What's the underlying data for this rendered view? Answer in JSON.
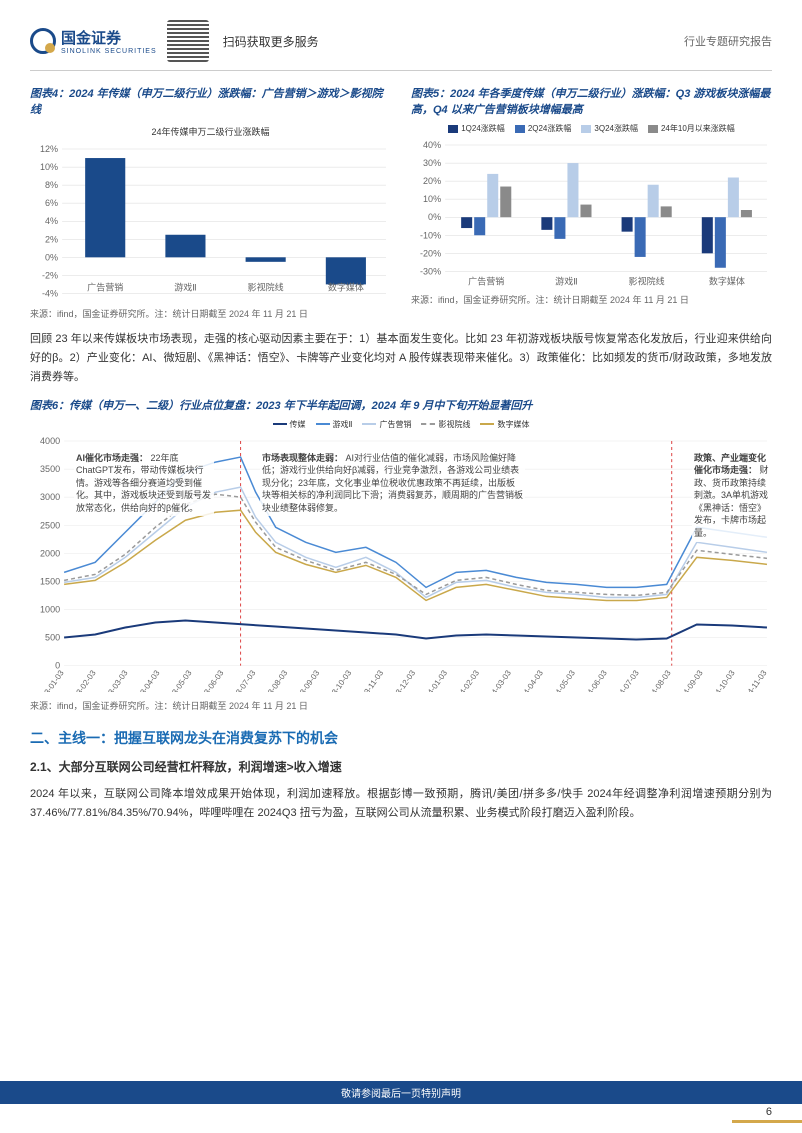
{
  "header": {
    "company_cn": "国金证券",
    "company_en": "SINOLINK SECURITIES",
    "qr_text": "扫码获取更多服务",
    "doc_type": "行业专题研究报告"
  },
  "chart4": {
    "title": "图表4：2024 年传媒（申万二级行业）涨跌幅：广告营销＞游戏＞影视院线",
    "subtitle": "24年传媒申万二级行业涨跌幅",
    "type": "bar",
    "categories": [
      "广告营销",
      "游戏Ⅱ",
      "影视院线",
      "数字媒体"
    ],
    "values": [
      11,
      2.5,
      -0.5,
      -3
    ],
    "bar_color": "#1a4a8a",
    "ylim": [
      -4,
      12
    ],
    "ytick_step": 2,
    "grid_color": "#d9d9d9",
    "source": "来源：ifind，国金证券研究所。注：统计日期截至 2024 年 11 月 21 日"
  },
  "chart5": {
    "title": "图表5：2024 年各季度传媒（申万二级行业）涨跌幅：Q3 游戏板块涨幅最高，Q4 以来广告营销板块增幅最高",
    "type": "grouped-bar",
    "categories": [
      "广告营销",
      "游戏Ⅱ",
      "影视院线",
      "数字媒体"
    ],
    "series": [
      {
        "name": "1Q24涨跌幅",
        "color": "#1a3a7a",
        "values": [
          -6,
          -7,
          -8,
          -20
        ]
      },
      {
        "name": "2Q24涨跌幅",
        "color": "#3a6ab5",
        "values": [
          -10,
          -12,
          -22,
          -28
        ]
      },
      {
        "name": "3Q24涨跌幅",
        "color": "#b8cde8",
        "values": [
          24,
          30,
          18,
          22
        ]
      },
      {
        "name": "24年10月以来涨跌幅",
        "color": "#8a8a8a",
        "values": [
          17,
          7,
          6,
          4
        ]
      }
    ],
    "ylim": [
      -30,
      40
    ],
    "ytick_step": 10,
    "grid_color": "#d9d9d9",
    "source": "来源：ifind，国金证券研究所。注：统计日期截至 2024 年 11 月 21 日"
  },
  "para1": "回顾 23 年以来传媒板块市场表现，走强的核心驱动因素主要在于：1）基本面发生变化。比如 23 年初游戏板块版号恢复常态化发放后，行业迎来供给向好的β。2）产业变化：AI、微短剧、《黑神话：悟空》、卡牌等产业变化均对 A 股传媒表现带来催化。3）政策催化：比如频发的货币/财政政策，多地发放消费券等。",
  "chart6": {
    "title": "图表6：传媒（申万一、二级）行业点位复盘：2023 年下半年起回调，2024 年 9 月中下旬开始显著回升",
    "type": "line",
    "series_legend": [
      {
        "name": "传媒",
        "color": "#1a3a7a",
        "style": "solid"
      },
      {
        "name": "游戏Ⅱ",
        "color": "#4a8ad4",
        "style": "solid"
      },
      {
        "name": "广告营销",
        "color": "#b8cde8",
        "style": "solid"
      },
      {
        "name": "影视院线",
        "color": "#9a9a9a",
        "style": "dashed"
      },
      {
        "name": "数字媒体",
        "color": "#c9a84b",
        "style": "solid"
      }
    ],
    "ylim": [
      0,
      4000
    ],
    "ytick_step": 500,
    "x_labels": [
      "2023-01-03",
      "2023-02-03",
      "2023-03-03",
      "2023-04-03",
      "2023-05-03",
      "2023-06-03",
      "2023-07-03",
      "2023-08-03",
      "2023-09-03",
      "2023-10-03",
      "2023-11-03",
      "2023-12-03",
      "2024-01-03",
      "2024-02-03",
      "2024-03-03",
      "2024-04-03",
      "2024-05-03",
      "2024-06-03",
      "2024-07-03",
      "2024-08-03",
      "2024-09-03",
      "2024-10-03",
      "2024-11-03"
    ],
    "annotations": {
      "a1_head": "AI催化市场走强：",
      "a1_body": "22年底ChatGPT发布，带动传媒板块行情。游戏等各细分赛道均受到催化。其中，游戏板块还受到版号发放常态化，供给向好的β催化。",
      "a2_head": "市场表现整体走弱：",
      "a2_body": "AI对行业估值的催化减弱，市场风险偏好降低；游戏行业供给向好β减弱，行业竞争激烈，各游戏公司业绩表现分化；23年底，文化事业单位税收优惠政策不再延续，出版板块等相关标的净利润同比下滑；消费弱复苏，顺周期的广告营销板块业绩整体弱修复。",
      "a3_head": "政策、产业端变化催化市场走强：",
      "a3_body": "财政、货币政策持续刺激。3A单机游戏《黑神话：悟空》发布，卡牌市场起量。"
    },
    "source": "来源：ifind，国金证券研究所。注：统计日期截至 2024 年 11 月 21 日"
  },
  "section2": {
    "h2": "二、主线一：把握互联网龙头在消费复苏下的机会",
    "h3": "2.1、大部分互联网公司经营杠杆释放，利润增速>收入增速",
    "para": "2024 年以来，互联网公司降本增效成果开始体现，利润加速释放。根据彭博一致预期，腾讯/美团/拼多多/快手 2024年经调整净利润增速预期分别为 37.46%/77.81%/84.35%/70.94%，哔哩哔哩在 2024Q3 扭亏为盈，互联网公司从流量积累、业务模式阶段打磨迈入盈利阶段。"
  },
  "footer": {
    "disclaimer": "敬请参阅最后一页特别声明",
    "page": "6"
  }
}
